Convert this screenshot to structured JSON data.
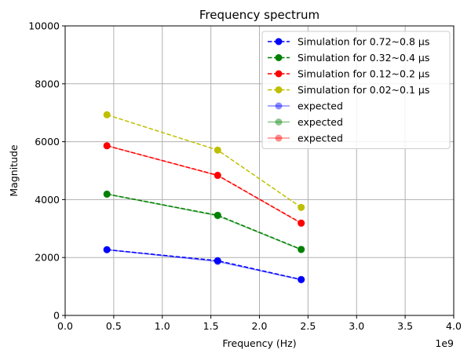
{
  "chart_data": {
    "type": "line",
    "title": "Frequency spectrum",
    "xlabel": "Frequency (Hz)",
    "ylabel": "Magnitude",
    "x_offset_label": "1e9",
    "xlim": [
      0,
      4
    ],
    "ylim": [
      0,
      10000
    ],
    "x_ticks": [
      "0.0",
      "0.5",
      "1.0",
      "1.5",
      "2.0",
      "2.5",
      "3.0",
      "3.5",
      "4.0"
    ],
    "y_ticks": [
      "0",
      "2000",
      "4000",
      "6000",
      "8000",
      "10000"
    ],
    "grid": true,
    "legend_position": "top-right",
    "x": [
      0.43,
      1.57,
      2.43
    ],
    "series": [
      {
        "name": "Simulation for 0.72~0.8 μs",
        "values": [
          2270,
          1890,
          1240
        ],
        "color": "#0000ff",
        "style": "dashed-marker"
      },
      {
        "name": "Simulation for 0.32~0.4 μs",
        "values": [
          4190,
          3460,
          2280
        ],
        "color": "#008000",
        "style": "dashed-marker"
      },
      {
        "name": "Simulation for 0.12~0.2 μs",
        "values": [
          5860,
          4840,
          3190
        ],
        "color": "#ff0000",
        "style": "dashed-marker"
      },
      {
        "name": "Simulation for 0.02~0.1 μs",
        "values": [
          6930,
          5710,
          3730
        ],
        "color": "#bfbf00",
        "style": "dashed-marker"
      },
      {
        "name": "expected",
        "values": [
          2270,
          1860,
          1230
        ],
        "color": "#0000ff",
        "style": "solid-faded"
      },
      {
        "name": "expected",
        "values": [
          4190,
          3440,
          2270
        ],
        "color": "#008000",
        "style": "solid-faded"
      },
      {
        "name": "expected",
        "values": [
          5860,
          4830,
          3180
        ],
        "color": "#ff0000",
        "style": "solid-faded"
      }
    ]
  }
}
